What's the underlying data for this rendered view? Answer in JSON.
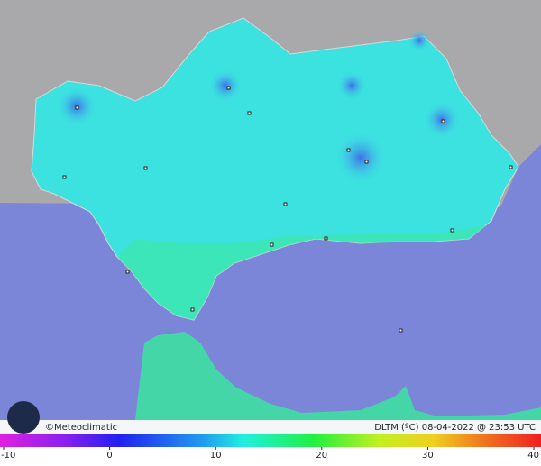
{
  "footer": {
    "brand": "©Meteoclimatic",
    "caption": "DLTM (ºC)  08-04-2022 @ 23:53 UTC"
  },
  "legend": {
    "ticks": [
      -10,
      0,
      10,
      20,
      30,
      40
    ]
  }
}
